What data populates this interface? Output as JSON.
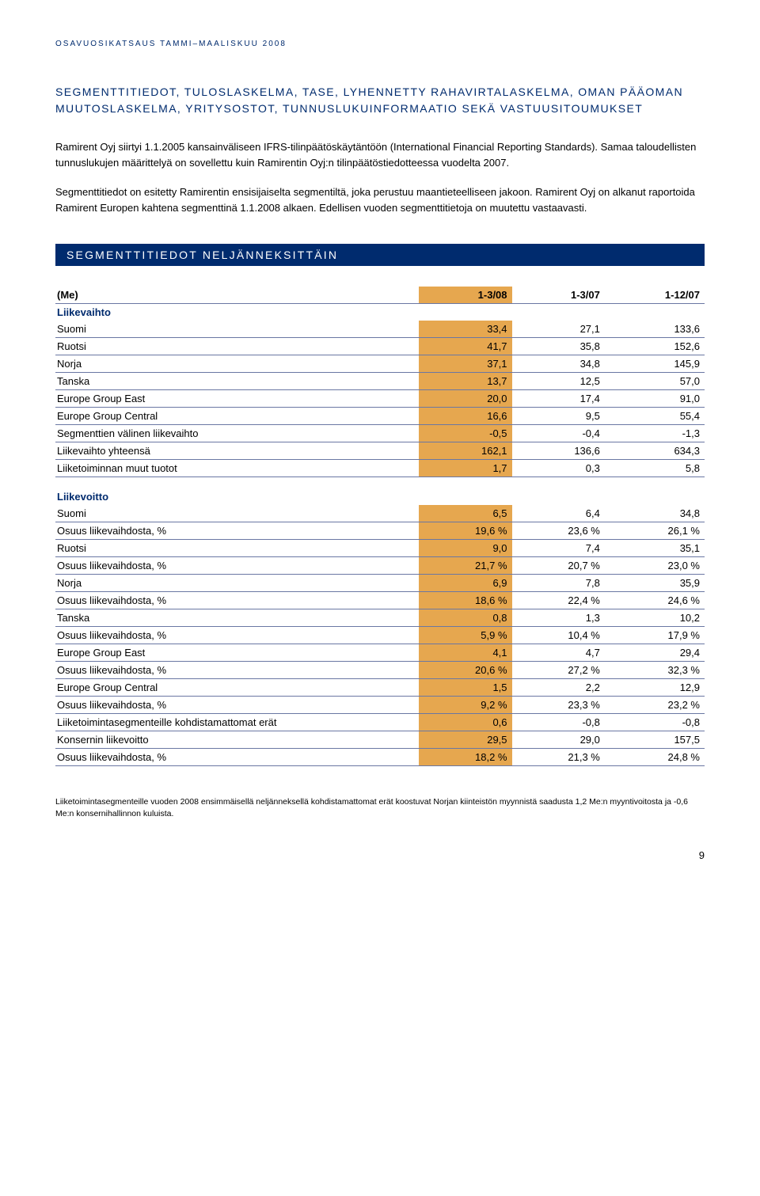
{
  "header": "OSAVUOSIKATSAUS TAMMI–MAALISKUU 2008",
  "title": "SEGMENTTITIEDOT, TULOSLASKELMA, TASE, LYHENNETTY RAHAVIRTALASKELMA, OMAN PÄÄOMAN MUUTOSLASKELMA, YRITYSOSTOT, TUNNUSLUKUINFORMAATIO SEKÄ VASTUUSITOUMUKSET",
  "para1": "Ramirent Oyj siirtyi 1.1.2005 kansainväliseen IFRS-tilinpäätöskäytäntöön (International Financial Reporting Standards). Samaa taloudellisten tunnuslukujen määrittelyä on sovellettu kuin Ramirentin Oyj:n tilinpäätöstiedotteessa vuodelta 2007.",
  "para2": "Segmenttitiedot on esitetty Ramirentin ensisijaiselta segmentiltä, joka perustuu maantieteelliseen jakoon. Ramirent Oyj on alkanut raportoida Ramirent Europen kahtena segmenttinä 1.1.2008 alkaen. Edellisen vuoden segmenttitietoja on muutettu vastaavasti.",
  "sectionTitle": "SEGMENTTITIEDOT NELJÄNNEKSITTÄIN",
  "table": {
    "header": {
      "c0": "(Me)",
      "c1": "1-3/08",
      "c2": "1-3/07",
      "c3": "1-12/07"
    },
    "cat1": "Liikevaihto",
    "rows1": [
      {
        "label": "Suomi",
        "v1": "33,4",
        "v2": "27,1",
        "v3": "133,6"
      },
      {
        "label": "Ruotsi",
        "v1": "41,7",
        "v2": "35,8",
        "v3": "152,6"
      },
      {
        "label": "Norja",
        "v1": "37,1",
        "v2": "34,8",
        "v3": "145,9"
      },
      {
        "label": "Tanska",
        "v1": "13,7",
        "v2": "12,5",
        "v3": "57,0"
      },
      {
        "label": "Europe Group East",
        "v1": "20,0",
        "v2": "17,4",
        "v3": "91,0"
      },
      {
        "label": "Europe Group Central",
        "v1": "16,6",
        "v2": "9,5",
        "v3": "55,4"
      },
      {
        "label": "Segmenttien välinen liikevaihto",
        "v1": "-0,5",
        "v2": "-0,4",
        "v3": "-1,3"
      },
      {
        "label": "Liikevaihto yhteensä",
        "v1": "162,1",
        "v2": "136,6",
        "v3": "634,3"
      },
      {
        "label": "Liiketoiminnan muut tuotot",
        "v1": "1,7",
        "v2": "0,3",
        "v3": "5,8"
      }
    ],
    "cat2": "Liikevoitto",
    "rows2": [
      {
        "label": "Suomi",
        "v1": "6,5",
        "v2": "6,4",
        "v3": "34,8"
      },
      {
        "label": "Osuus liikevaihdosta, %",
        "v1": "19,6 %",
        "v2": "23,6 %",
        "v3": "26,1 %"
      },
      {
        "label": "Ruotsi",
        "v1": "9,0",
        "v2": "7,4",
        "v3": "35,1"
      },
      {
        "label": "Osuus liikevaihdosta, %",
        "v1": "21,7 %",
        "v2": "20,7 %",
        "v3": "23,0 %"
      },
      {
        "label": "Norja",
        "v1": "6,9",
        "v2": "7,8",
        "v3": "35,9"
      },
      {
        "label": "Osuus liikevaihdosta, %",
        "v1": "18,6 %",
        "v2": "22,4 %",
        "v3": "24,6 %"
      },
      {
        "label": "Tanska",
        "v1": "0,8",
        "v2": "1,3",
        "v3": "10,2"
      },
      {
        "label": "Osuus liikevaihdosta, %",
        "v1": "5,9 %",
        "v2": "10,4 %",
        "v3": "17,9 %"
      },
      {
        "label": "Europe Group East",
        "v1": "4,1",
        "v2": "4,7",
        "v3": "29,4"
      },
      {
        "label": "Osuus liikevaihdosta, %",
        "v1": "20,6 %",
        "v2": "27,2 %",
        "v3": "32,3 %"
      },
      {
        "label": "Europe Group Central",
        "v1": "1,5",
        "v2": "2,2",
        "v3": "12,9"
      },
      {
        "label": "Osuus liikevaihdosta, %",
        "v1": "9,2 %",
        "v2": "23,3 %",
        "v3": "23,2 %"
      },
      {
        "label": "Liiketoimintasegmenteille kohdistamattomat erät",
        "v1": "0,6",
        "v2": "-0,8",
        "v3": "-0,8"
      },
      {
        "label": "Konsernin liikevoitto",
        "v1": "29,5",
        "v2": "29,0",
        "v3": "157,5"
      },
      {
        "label": "Osuus liikevaihdosta, %",
        "v1": "18,2 %",
        "v2": "21,3 %",
        "v3": "24,8 %"
      }
    ]
  },
  "footnote": "Liiketoimintasegmenteille vuoden 2008 ensimmäisellä neljänneksellä kohdistamattomat erät koostuvat Norjan kiinteistön myynnistä saadusta 1,2 Me:n myyntivoitosta ja -0,6 Me:n konsernihallinnon kuluista.",
  "pageNumber": "9"
}
